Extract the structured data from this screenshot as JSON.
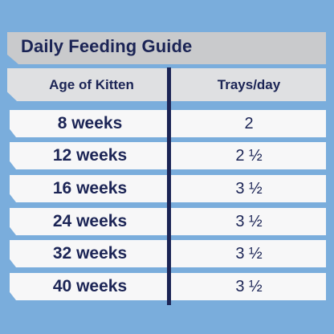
{
  "title": "Daily Feeding Guide",
  "headers": {
    "age": "Age of Kitten",
    "trays": "Trays/day"
  },
  "rows": [
    {
      "age": "8 weeks",
      "trays": "2"
    },
    {
      "age": "12 weeks",
      "trays": "2 ½"
    },
    {
      "age": "16 weeks",
      "trays": "3 ½"
    },
    {
      "age": "24 weeks",
      "trays": "3 ½"
    },
    {
      "age": "32 weeks",
      "trays": "3 ½"
    },
    {
      "age": "40 weeks",
      "trays": "3 ½"
    }
  ],
  "colors": {
    "background": "#7aaddc",
    "navy": "#1b2455",
    "title_bar": "#c9cacc",
    "header_bar": "#dfe0e2",
    "row": "#f7f7f8"
  }
}
